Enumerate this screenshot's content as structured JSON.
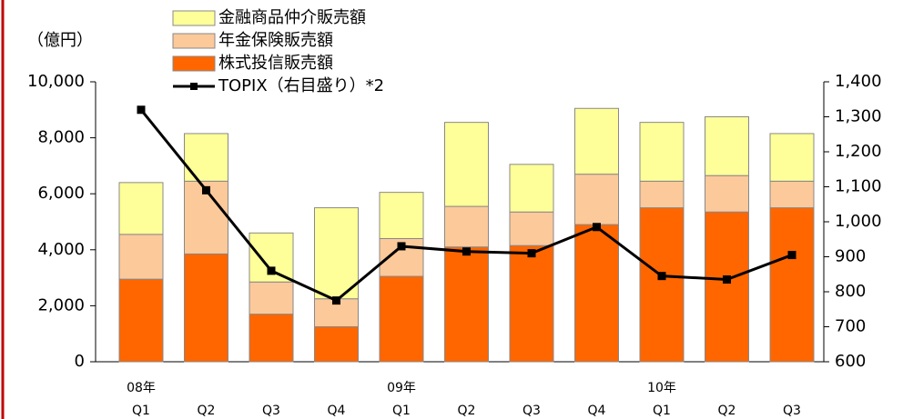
{
  "chart_data": {
    "type": "bar",
    "y_label": "（億円）",
    "categories": [
      "Q1",
      "Q2",
      "Q3",
      "Q4",
      "Q1",
      "Q2",
      "Q3",
      "Q4",
      "Q1",
      "Q2",
      "Q3"
    ],
    "years": [
      "08年",
      null,
      null,
      null,
      "09年",
      null,
      null,
      null,
      "10年",
      null,
      null
    ],
    "stacked": true,
    "series": [
      {
        "name": "株式投信販売額",
        "color": "#ff6600",
        "values": [
          2950,
          3850,
          1700,
          1250,
          3050,
          4100,
          4150,
          4900,
          5500,
          5350,
          5500
        ]
      },
      {
        "name": "年金保険販売額",
        "color": "#fcc99a",
        "values": [
          1600,
          2600,
          1150,
          1000,
          1350,
          1450,
          1200,
          1800,
          950,
          1300,
          950
        ]
      },
      {
        "name": "金融商品仲介販売額",
        "color": "#ffff99",
        "values": [
          1850,
          1700,
          1750,
          3250,
          1650,
          3000,
          1700,
          2350,
          2100,
          2100,
          1700
        ]
      },
      {
        "name": "TOPIX（右目盛り）*2",
        "color": "#000000",
        "type": "line",
        "axis": "y2",
        "values": [
          1320,
          1090,
          860,
          775,
          930,
          915,
          910,
          985,
          845,
          835,
          905
        ]
      }
    ],
    "ylim": [
      0,
      10000
    ],
    "yticks": [
      0,
      {
        "value": 2000,
        "label": "2,000"
      },
      {
        "value": 4000,
        "label": "4,000"
      },
      {
        "value": 6000,
        "label": "6,000"
      },
      {
        "value": 8000,
        "label": "8,000"
      },
      {
        "value": 10000,
        "label": "10,000"
      }
    ],
    "y2lim": [
      600,
      1400
    ],
    "y2ticks": [
      600,
      700,
      800,
      900,
      {
        "value": 1000,
        "label": "1,000"
      },
      {
        "value": 1100,
        "label": "1,100"
      },
      {
        "value": 1200,
        "label": "1,200"
      },
      {
        "value": 1300,
        "label": "1,300"
      },
      {
        "value": 1400,
        "label": "1,400"
      }
    ]
  }
}
